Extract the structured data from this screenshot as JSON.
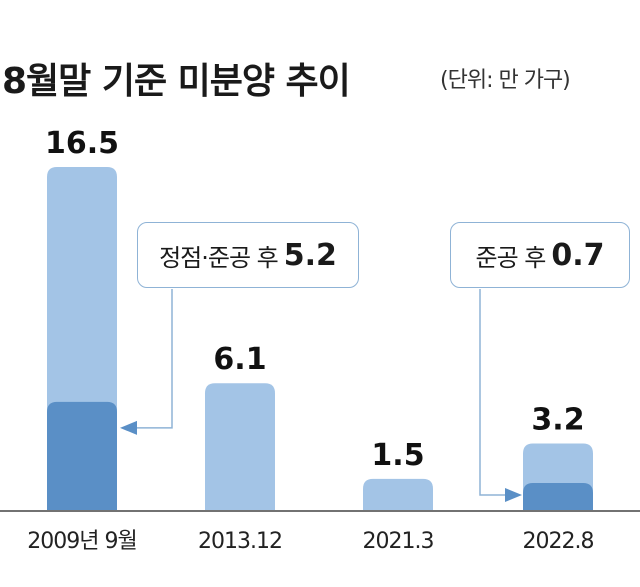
{
  "chart_data": {
    "type": "bar",
    "title": "8월말 기준 미분양 추이",
    "unit": "(단위: 만 가구)",
    "categories": [
      "2009년 9월",
      "2013.12",
      "2021.3",
      "2022.8"
    ],
    "values": [
      16.5,
      6.1,
      1.5,
      3.2
    ],
    "value_labels": [
      "16.5",
      "6.1",
      "1.5",
      "3.2"
    ],
    "sub_values": [
      5.2,
      null,
      null,
      0.7
    ],
    "annotations": [
      {
        "category_index": 0,
        "label": "정점·준공 후",
        "value": "5.2"
      },
      {
        "category_index": 3,
        "label": "준공 후",
        "value": "0.7"
      }
    ],
    "ylim": [
      0,
      16.5
    ],
    "grid": false,
    "colors": {
      "total": "#a3c4e6",
      "after_completion": "#5a8fc6",
      "axis": "#444444",
      "callout_border": "#8fb3d6"
    }
  }
}
